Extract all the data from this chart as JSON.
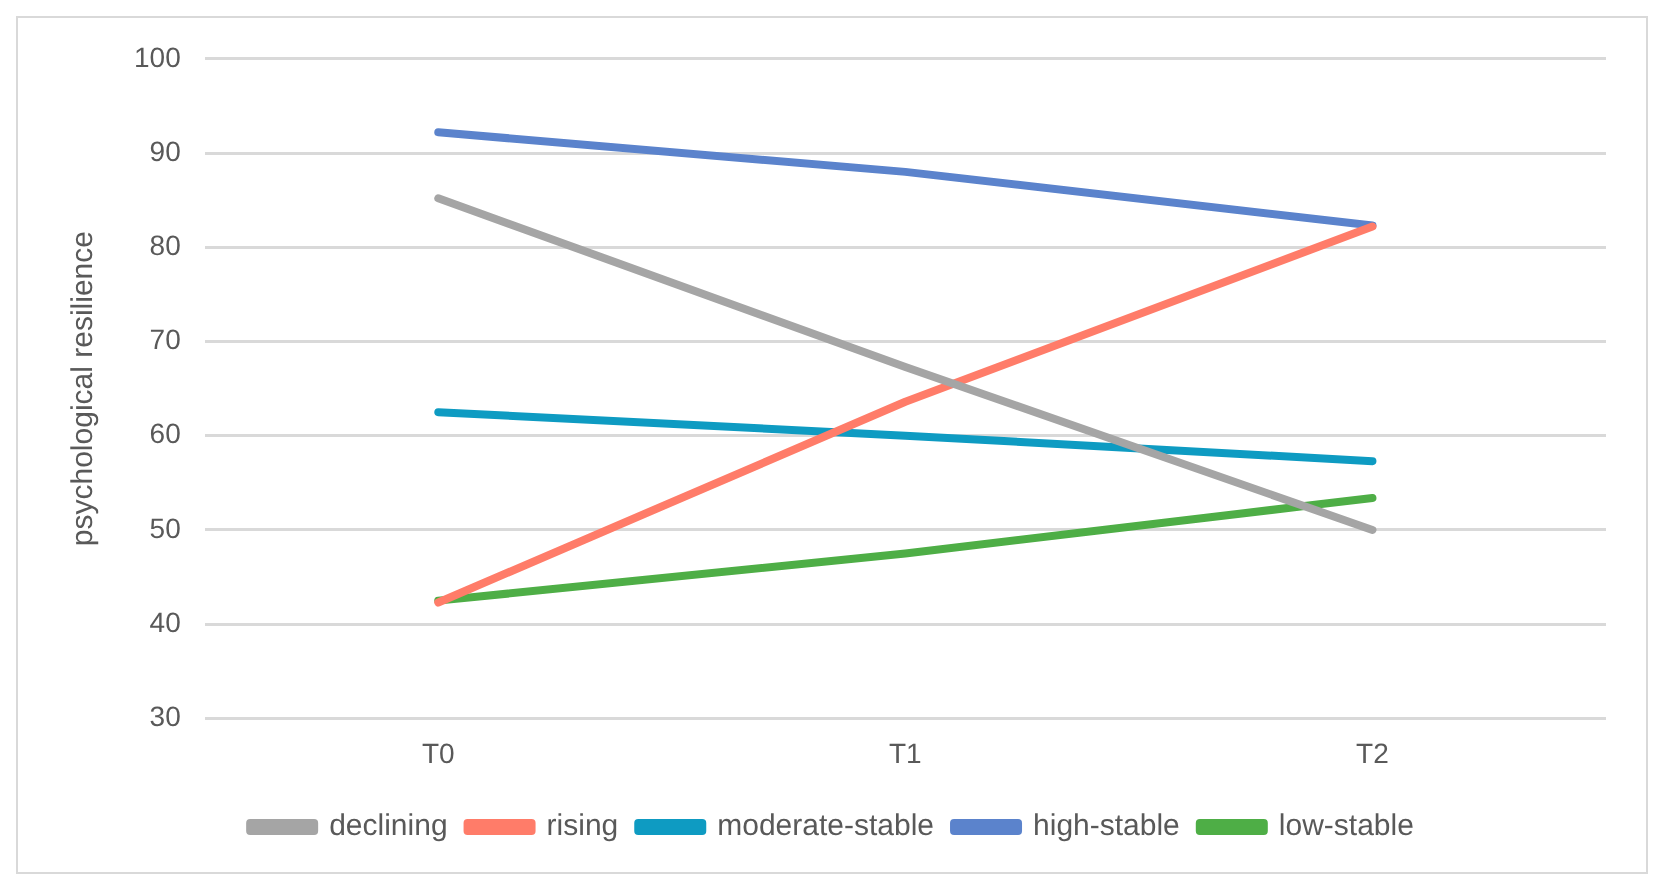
{
  "chart_data": {
    "type": "line",
    "ylabel": "psychological resilience",
    "categories": [
      "T0",
      "T1",
      "T2"
    ],
    "series": [
      {
        "name": "declining",
        "color": "#a5a5a5",
        "values": [
          85.2,
          67.3,
          50
        ]
      },
      {
        "name": "rising",
        "color": "#ff7c69",
        "values": [
          42.3,
          63.6,
          82.2
        ]
      },
      {
        "name": "moderate-stable",
        "color": "#0e9bc2",
        "values": [
          62.5,
          60,
          57.3
        ]
      },
      {
        "name": "high-stable",
        "color": "#5b83cc",
        "values": [
          92.2,
          88,
          82.3
        ]
      },
      {
        "name": "low-stable",
        "color": "#4eae46",
        "values": [
          42.5,
          47.5,
          53.4
        ]
      }
    ],
    "ylim": [
      30,
      100
    ],
    "yticks": [
      30,
      40,
      50,
      60,
      70,
      80,
      90,
      100
    ],
    "grid": "y",
    "legend": "bottom",
    "marker": "none",
    "line_style": "solid"
  }
}
